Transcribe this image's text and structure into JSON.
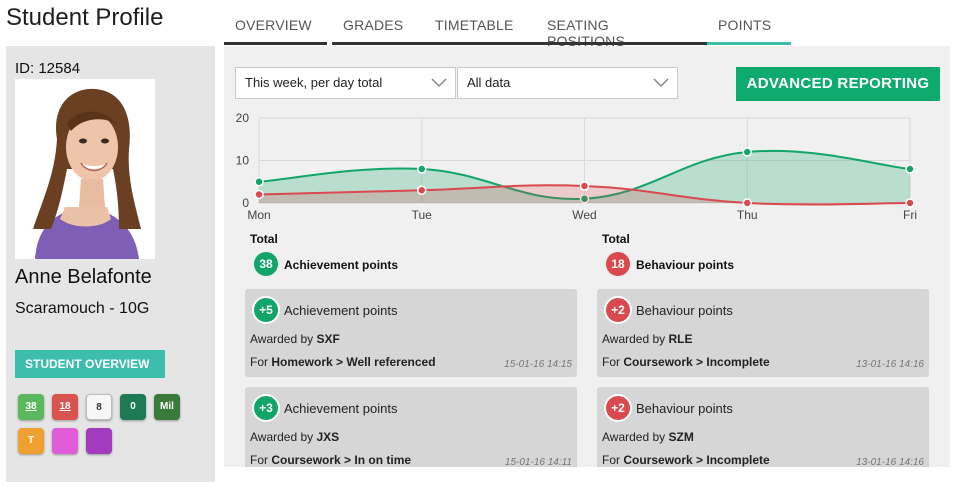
{
  "page_title": "Student Profile",
  "student": {
    "id_label": "ID: 12584",
    "name": "Anne Belafonte",
    "class": "Scaramouch - 10G",
    "overview_button": "STUDENT OVERVIEW",
    "badges": [
      {
        "label": "38",
        "color": "#5cb85c"
      },
      {
        "label": "18",
        "color": "#d9534f"
      },
      {
        "label": "8",
        "color": "#f7f7f7"
      },
      {
        "label": "0",
        "color": "#1e7a55"
      },
      {
        "label": "Mil",
        "color": "#3a7a3a"
      },
      {
        "label": "T",
        "color": "#f0a030"
      },
      {
        "label": "",
        "color": "#e05cd8"
      },
      {
        "label": "",
        "color": "#a23bbd"
      }
    ]
  },
  "tabs": [
    {
      "label": "OVERVIEW",
      "active": false
    },
    {
      "label": "GRADES",
      "active": false
    },
    {
      "label": "TIMETABLE",
      "active": false
    },
    {
      "label": "SEATING POSITIONS",
      "active": false
    },
    {
      "label": "POINTS",
      "active": true
    }
  ],
  "filters": {
    "period": "This week, per day total",
    "scope": "All data",
    "advanced_button": "ADVANCED REPORTING"
  },
  "chart_data": {
    "type": "area",
    "categories": [
      "Mon",
      "Tue",
      "Wed",
      "Thu",
      "Fri"
    ],
    "ylim": [
      0,
      20
    ],
    "yticks": [
      0,
      10,
      20
    ],
    "grid": true,
    "series": [
      {
        "values": [
          5,
          8,
          1,
          12,
          8
        ],
        "color": "#12a56a"
      },
      {
        "values": [
          2,
          3,
          4,
          0,
          0
        ],
        "color": "#d9494e"
      }
    ]
  },
  "totals": {
    "achievement": {
      "heading": "Total",
      "value": "38",
      "label": "Achievement points"
    },
    "behaviour": {
      "heading": "Total",
      "value": "18",
      "label": "Behaviour points"
    }
  },
  "cards": [
    {
      "kind": "achievement",
      "value": "+5",
      "title": "Achievement points",
      "awarded_prefix": "Awarded by",
      "awarded_by": "SXF",
      "for_prefix": "For",
      "reason": "Homework > Well referenced",
      "timestamp": "15-01-16 14:15"
    },
    {
      "kind": "behaviour",
      "value": "+2",
      "title": "Behaviour points",
      "awarded_prefix": "Awarded by",
      "awarded_by": "RLE",
      "for_prefix": "For",
      "reason": "Coursework > Incomplete",
      "timestamp": "13-01-16 14:16"
    },
    {
      "kind": "achievement",
      "value": "+3",
      "title": "Achievement points",
      "awarded_prefix": "Awarded by",
      "awarded_by": "JXS",
      "for_prefix": "For",
      "reason": "Coursework > In on time",
      "timestamp": "15-01-16 14:11"
    },
    {
      "kind": "behaviour",
      "value": "+2",
      "title": "Behaviour points",
      "awarded_prefix": "Awarded by",
      "awarded_by": "SZM",
      "for_prefix": "For",
      "reason": "Coursework > Incomplete",
      "timestamp": "13-01-16 14:16"
    }
  ],
  "colors": {
    "accent": "#3dbdac",
    "achievement": "#12a56a",
    "behaviour": "#d9494e",
    "advanced_button": "#0faa6e"
  }
}
